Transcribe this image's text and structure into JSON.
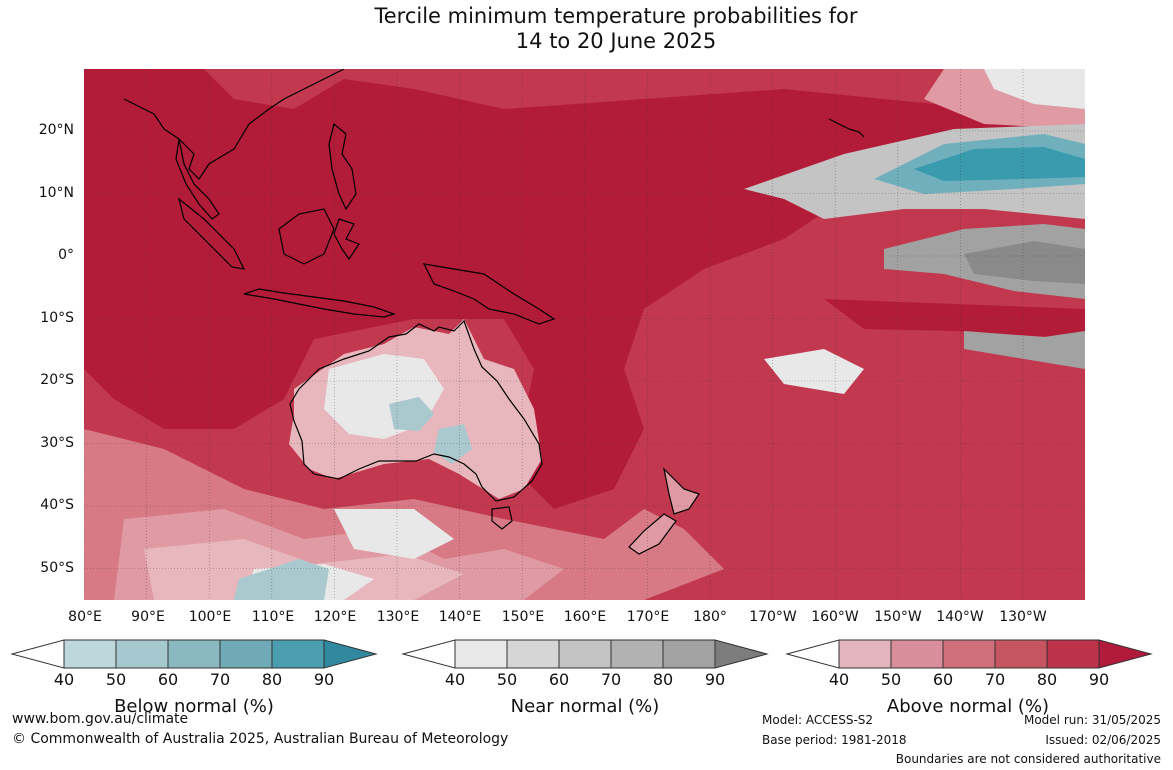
{
  "title": {
    "line1": "Tercile minimum temperature probabilities for",
    "line2": "14 to 20 June 2025"
  },
  "map": {
    "lat_labels": [
      "20°N",
      "10°N",
      "0°",
      "10°S",
      "20°S",
      "30°S",
      "40°S",
      "50°S"
    ],
    "lon_labels": [
      "80°E",
      "90°E",
      "100°E",
      "110°E",
      "120°E",
      "130°E",
      "140°E",
      "150°E",
      "160°E",
      "170°E",
      "180°",
      "170°W",
      "160°W",
      "150°W",
      "140°W",
      "130°W"
    ],
    "colors": {
      "above_90": "#b31c39",
      "above_80": "#c2384e",
      "above_70": "#cc5a68",
      "above_60": "#d77a85",
      "above_50": "#df9aa3",
      "above_40": "#e8b7bd",
      "near_40": "#e8e8e8",
      "near_60": "#c4c4c4",
      "near_80": "#a2a2a2",
      "near_90": "#8a8a8a",
      "below_50": "#a9c9cf",
      "below_70": "#6fb0bc",
      "below_90": "#3a9aae"
    }
  },
  "colorbars": {
    "ticks": [
      "40",
      "50",
      "60",
      "70",
      "80",
      "90"
    ],
    "below": {
      "label": "Below normal (%)",
      "colors": [
        "#bdd7dd",
        "#a5c9cf",
        "#8ab8c1",
        "#6faab6",
        "#4a9eb0"
      ],
      "arrow": "#3189a0"
    },
    "near": {
      "label": "Near normal (%)",
      "colors": [
        "#e9e9e9",
        "#d6d6d6",
        "#c3c3c3",
        "#b2b2b2",
        "#a2a2a2"
      ],
      "arrow": "#7d7d7d"
    },
    "above": {
      "label": "Above normal (%)",
      "colors": [
        "#e2b4bb",
        "#d98f9b",
        "#cf6f7c",
        "#c75461",
        "#bc3249"
      ],
      "arrow": "#b11a3a"
    }
  },
  "footer": {
    "website": "www.bom.gov.au/climate",
    "copyright": "© Commonwealth of Australia 2025, Australian Bureau of Meteorology",
    "model": "Model: ACCESS-S2",
    "base_period": "Base period: 1981-2018",
    "model_run": "Model run: 31/05/2025",
    "issued": "Issued: 02/06/2025",
    "disclaimer": "Boundaries are not considered authoritative"
  }
}
